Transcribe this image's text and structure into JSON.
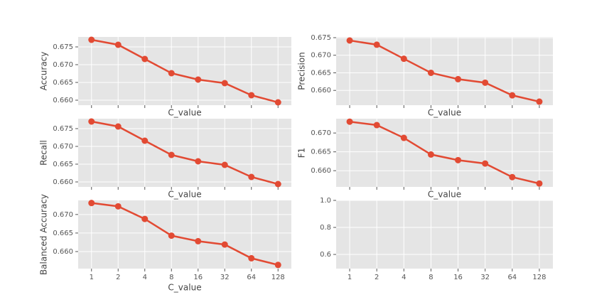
{
  "chart_data": [
    {
      "type": "line",
      "ylabel": "Accuracy",
      "xlabel": "C_value",
      "color": "#e24a33",
      "values": [
        0.677,
        0.6756,
        0.6716,
        0.6676,
        0.6658,
        0.6648,
        0.6614,
        0.6594
      ],
      "ylim": [
        0.6586,
        0.6778
      ],
      "yticks": [
        {
          "value": 0.66,
          "label": "0.660"
        },
        0.665,
        {
          "value": 0.67,
          "label": "0.670"
        },
        0.675
      ]
    },
    {
      "type": "line",
      "ylabel": "Precision",
      "xlabel": "C_value",
      "color": "#e24a33",
      "values": [
        0.6742,
        0.673,
        0.669,
        0.665,
        0.6632,
        0.6622,
        0.6586,
        0.6568
      ],
      "ylim": [
        0.6558,
        0.6752
      ],
      "yticks": [
        {
          "value": 0.66,
          "label": "0.660"
        },
        0.665,
        {
          "value": 0.67,
          "label": "0.670"
        },
        0.675
      ]
    },
    {
      "type": "line",
      "ylabel": "Recall",
      "xlabel": "C_value",
      "color": "#e24a33",
      "values": [
        0.677,
        0.6756,
        0.6716,
        0.6676,
        0.6658,
        0.6648,
        0.6614,
        0.6594
      ],
      "ylim": [
        0.6586,
        0.6778
      ],
      "yticks": [
        {
          "value": 0.66,
          "label": "0.660"
        },
        0.665,
        {
          "value": 0.67,
          "label": "0.670"
        },
        0.675
      ]
    },
    {
      "type": "line",
      "ylabel": "F1",
      "xlabel": "C_value",
      "color": "#e24a33",
      "values": [
        0.673,
        0.6721,
        0.6687,
        0.6643,
        0.6628,
        0.6619,
        0.6583,
        0.6566
      ],
      "ylim": [
        0.6557,
        0.6738
      ],
      "yticks": [
        {
          "value": 0.66,
          "label": "0.660"
        },
        0.665,
        {
          "value": 0.67,
          "label": "0.670"
        }
      ]
    },
    {
      "type": "line",
      "ylabel": "Balanced Accuracy",
      "xlabel": "C_value",
      "color": "#e24a33",
      "categories": [
        "1",
        "2",
        "4",
        "8",
        "16",
        "32",
        "64",
        "128"
      ],
      "values": [
        0.6731,
        0.6722,
        0.6688,
        0.6643,
        0.6628,
        0.6619,
        0.6582,
        0.6564
      ],
      "ylim": [
        0.6554,
        0.6738
      ],
      "yticks": [
        {
          "value": 0.66,
          "label": "0.660"
        },
        0.665,
        {
          "value": 0.67,
          "label": "0.670"
        }
      ]
    },
    {
      "type": "empty",
      "categories": [
        "1",
        "2",
        "4",
        "8",
        "16",
        "32",
        "64",
        "128"
      ],
      "ylim": [
        0.495,
        1.0
      ],
      "yticks": [
        0.6,
        0.8,
        {
          "value": 1.0,
          "label": "1.0"
        }
      ]
    }
  ]
}
